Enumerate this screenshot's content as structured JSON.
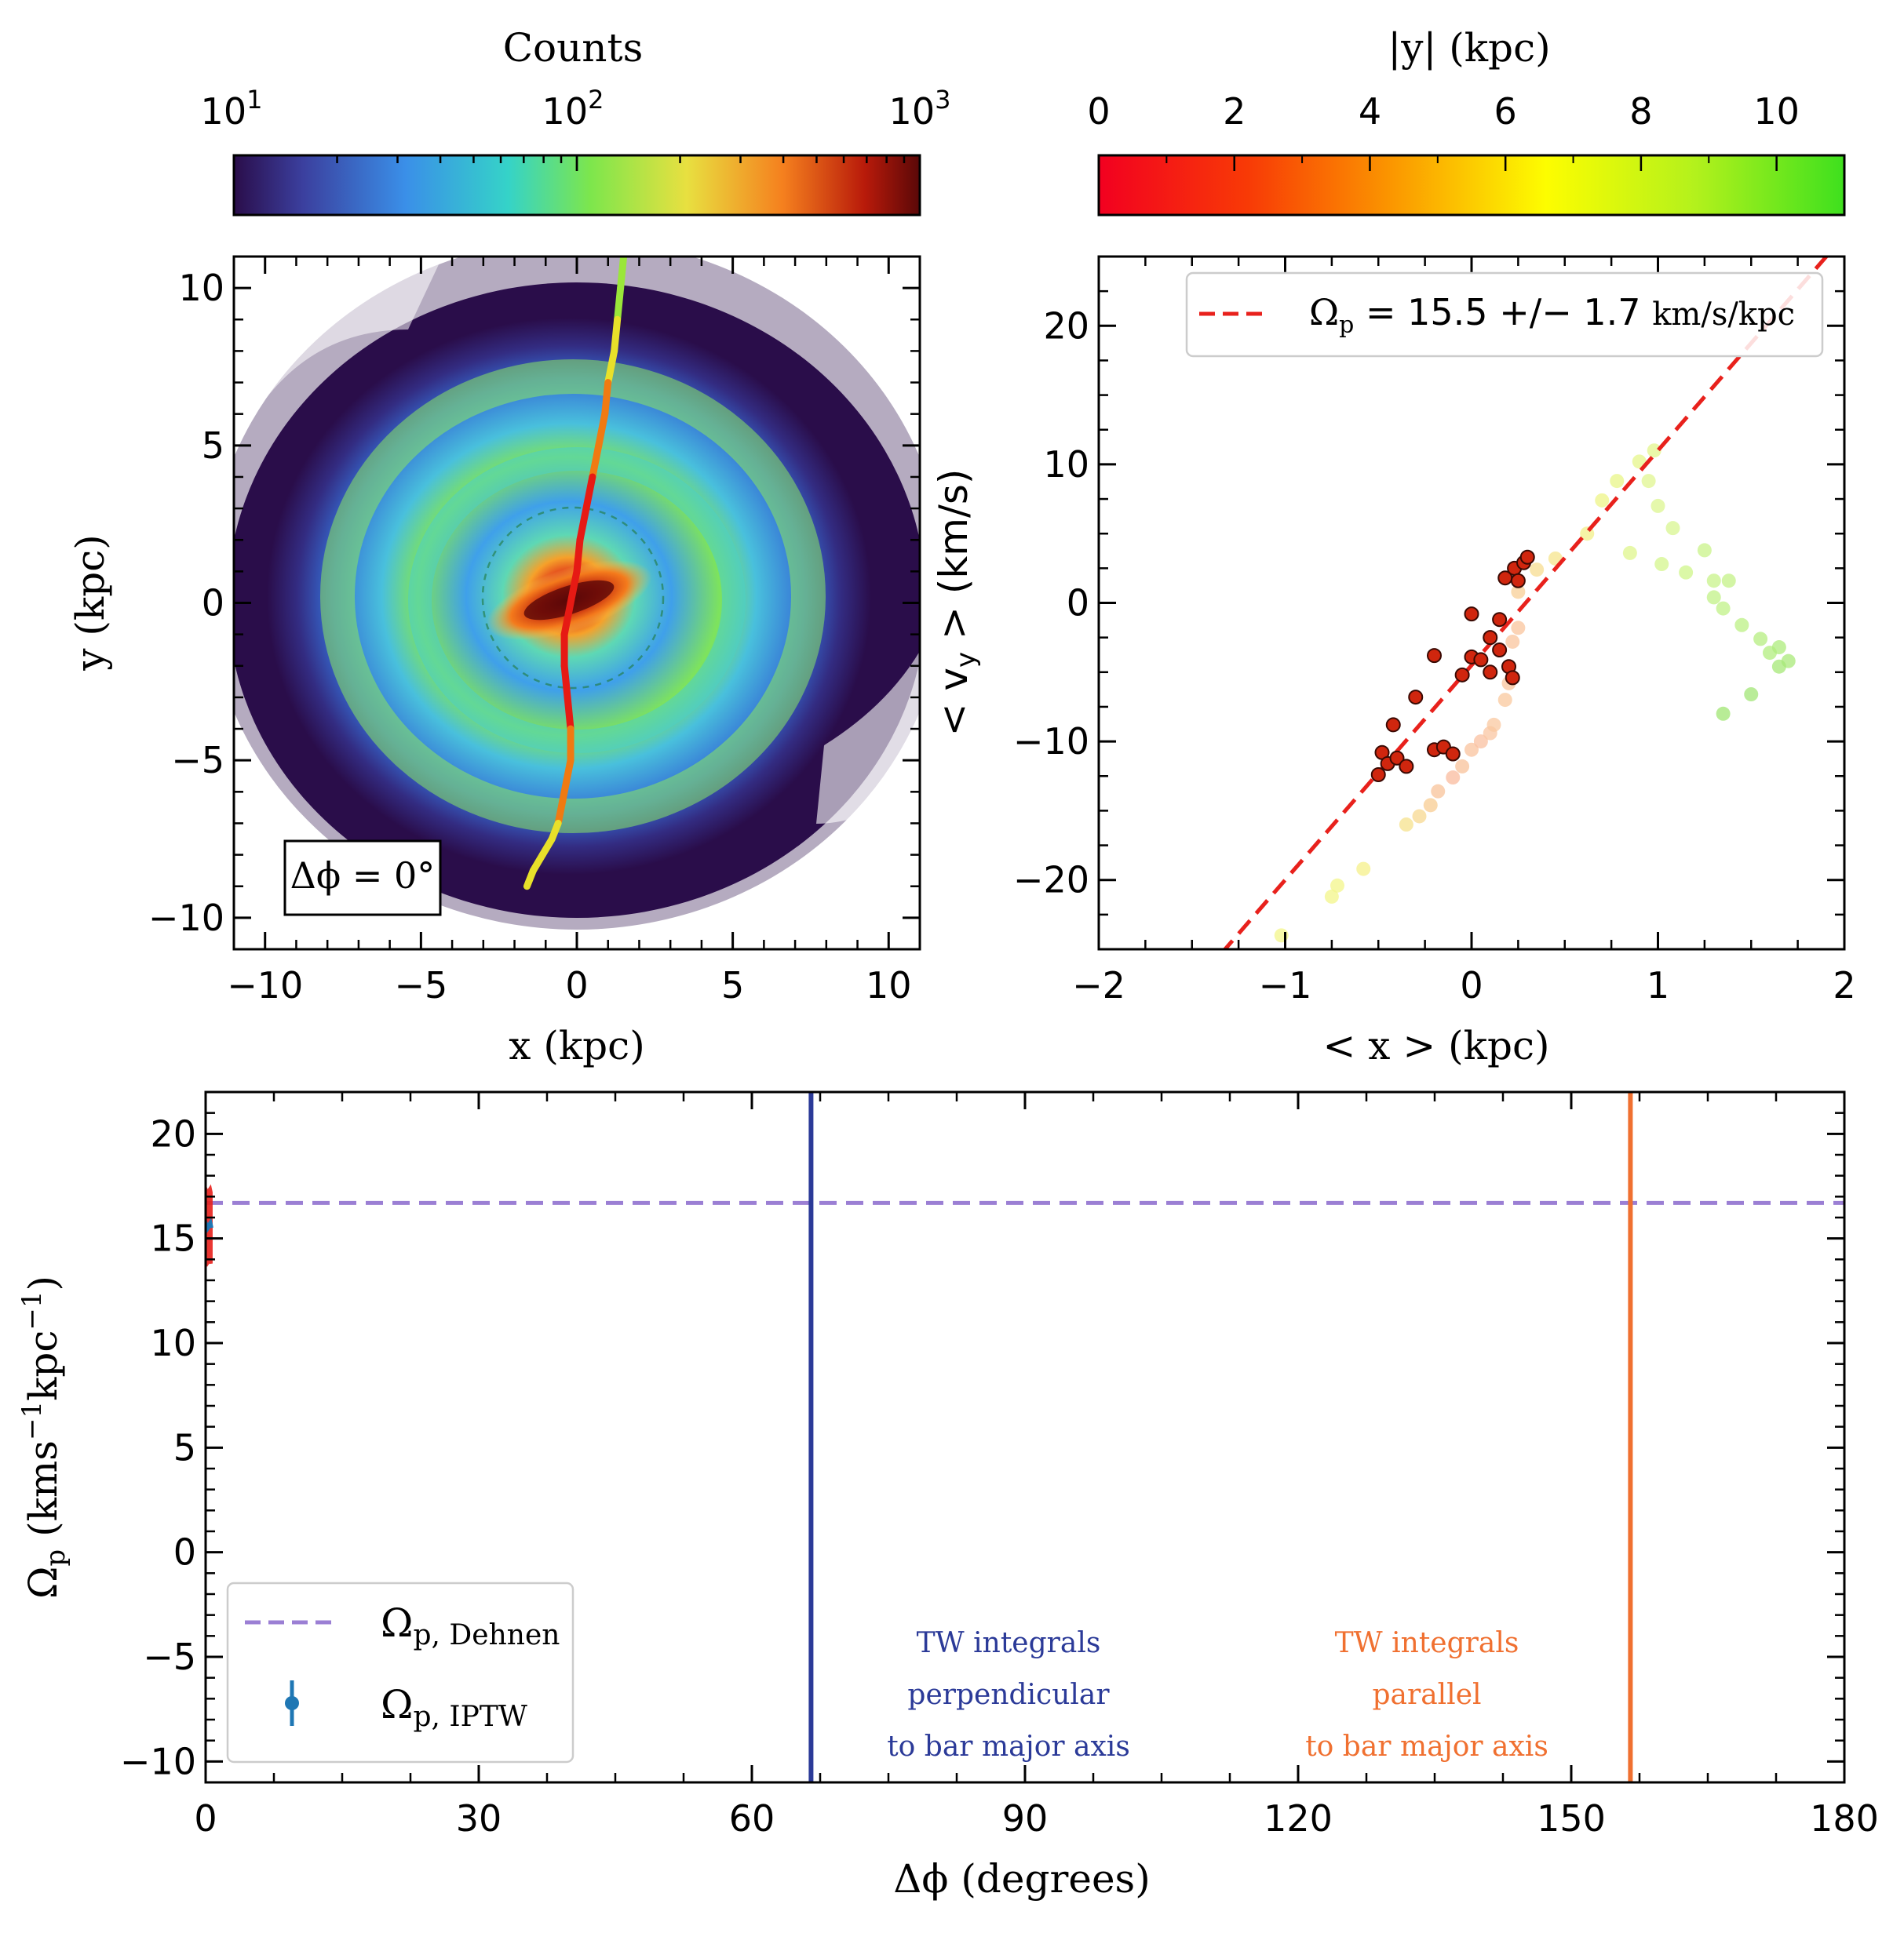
{
  "colors": {
    "axis": "#000000",
    "fit_line": "#e8211c",
    "dehnen_line": "#9b7fd4",
    "perp_line": "#2b3a98",
    "par_line": "#f07030",
    "iptw_marker": "#1f77b4",
    "dark_bg": "#2a0d4a"
  },
  "chart_data": [
    {
      "id": "density-map",
      "type": "heatmap",
      "colorbar": {
        "title": "Counts",
        "scale": "log",
        "range": [
          10,
          1000
        ],
        "tick_labels": [
          "10",
          "10",
          "10"
        ],
        "tick_exponents": [
          "1",
          "2",
          "3"
        ]
      },
      "xlabel": "x (kpc)",
      "ylabel": "y (kpc)",
      "xlim": [
        -11,
        11
      ],
      "ylim": [
        -11,
        11
      ],
      "xticks": [
        -10,
        -5,
        0,
        5,
        10
      ],
      "xtick_labels": [
        "−10",
        "−5",
        "0",
        "5",
        "10"
      ],
      "yticks": [
        -10,
        -5,
        0,
        5,
        10
      ],
      "ytick_labels": [
        "−10",
        "−5",
        "0",
        "5",
        "10"
      ],
      "annotation": "Δϕ = 0°",
      "ridge_line": {
        "x": [
          1.5,
          1.4,
          1.3,
          1.2,
          1.0,
          0.9,
          0.7,
          0.5,
          0.3,
          0.1,
          0.0,
          -0.1,
          -0.2,
          -0.3,
          -0.4,
          -0.4,
          -0.3,
          -0.2,
          -0.2,
          -0.4,
          -0.6,
          -0.8,
          -1.1,
          -1.4,
          -1.6
        ],
        "y": [
          11.0,
          10.0,
          9.0,
          8.0,
          7.0,
          6.0,
          5.0,
          4.0,
          3.0,
          2.0,
          1.0,
          0.5,
          0.0,
          -0.5,
          -1.0,
          -2.0,
          -3.0,
          -4.0,
          -5.0,
          -6.0,
          -7.0,
          -7.5,
          -8.0,
          -8.5,
          -9.0
        ]
      }
    },
    {
      "id": "tw-fit",
      "type": "scatter",
      "colorbar": {
        "title": "|y| (kpc)",
        "range": [
          0,
          11
        ],
        "ticks": [
          0,
          2,
          4,
          6,
          8,
          10
        ],
        "tick_labels": [
          "0",
          "2",
          "4",
          "6",
          "8",
          "10"
        ]
      },
      "xlabel": "< x > (kpc)",
      "ylabel": "< v",
      "ylabel_sub": "y",
      "ylabel_tail": " > (km/s)",
      "xlim": [
        -2,
        2
      ],
      "ylim": [
        -25,
        25
      ],
      "xticks": [
        -2,
        -1,
        0,
        1,
        2
      ],
      "xtick_labels": [
        "−2",
        "−1",
        "0",
        "1",
        "2"
      ],
      "yticks": [
        -20,
        -10,
        0,
        10,
        20
      ],
      "ytick_labels": [
        "−20",
        "−10",
        "0",
        "10",
        "20"
      ],
      "legend": {
        "label_sym": "Ω",
        "label_sub": "p",
        "label_text": " = 15.5 +/− 1.7 ",
        "label_unit": "km/s/kpc",
        "placement": "top-right"
      },
      "fit_line": {
        "slope": 15.5,
        "intercept": -4.5
      },
      "points_highlight": [
        {
          "x": -0.48,
          "y": -10.8
        },
        {
          "x": -0.45,
          "y": -11.6
        },
        {
          "x": -0.4,
          "y": -11.2
        },
        {
          "x": -0.35,
          "y": -11.8
        },
        {
          "x": -0.5,
          "y": -12.4
        },
        {
          "x": -0.42,
          "y": -8.8
        },
        {
          "x": -0.3,
          "y": -6.8
        },
        {
          "x": -0.2,
          "y": -10.6
        },
        {
          "x": -0.15,
          "y": -10.4
        },
        {
          "x": -0.1,
          "y": -10.9
        },
        {
          "x": -0.2,
          "y": -3.8
        },
        {
          "x": -0.05,
          "y": -5.2
        },
        {
          "x": 0.0,
          "y": -3.9
        },
        {
          "x": 0.05,
          "y": -4.1
        },
        {
          "x": 0.1,
          "y": -2.5
        },
        {
          "x": 0.15,
          "y": -3.4
        },
        {
          "x": 0.1,
          "y": -5.0
        },
        {
          "x": 0.2,
          "y": -4.6
        },
        {
          "x": 0.22,
          "y": -5.4
        },
        {
          "x": 0.15,
          "y": -1.2
        },
        {
          "x": 0.0,
          "y": -0.8
        },
        {
          "x": 0.18,
          "y": 1.8
        },
        {
          "x": 0.23,
          "y": 2.5
        },
        {
          "x": 0.28,
          "y": 2.9
        },
        {
          "x": 0.3,
          "y": 3.3
        },
        {
          "x": 0.25,
          "y": 1.6
        }
      ],
      "points_faded": [
        {
          "x": -1.02,
          "y": -24.0,
          "c": "#f3f58a"
        },
        {
          "x": -0.75,
          "y": -21.2,
          "c": "#f3f58a"
        },
        {
          "x": -0.72,
          "y": -20.4,
          "c": "#f3f58a"
        },
        {
          "x": -0.58,
          "y": -19.2,
          "c": "#f5f08a"
        },
        {
          "x": -0.35,
          "y": -16.0,
          "c": "#f6e28c"
        },
        {
          "x": -0.28,
          "y": -15.4,
          "c": "#f7d890"
        },
        {
          "x": -0.22,
          "y": -14.6,
          "c": "#f8cc92"
        },
        {
          "x": -0.18,
          "y": -13.6,
          "c": "#f8c39a"
        },
        {
          "x": -0.1,
          "y": -12.6,
          "c": "#f9bb9e"
        },
        {
          "x": -0.05,
          "y": -11.8,
          "c": "#f8c29a"
        },
        {
          "x": 0.0,
          "y": -10.6,
          "c": "#f9c39e"
        },
        {
          "x": 0.05,
          "y": -10.0,
          "c": "#f9c0a0"
        },
        {
          "x": 0.1,
          "y": -9.4,
          "c": "#f9c5a2"
        },
        {
          "x": 0.12,
          "y": -8.8,
          "c": "#f9c8a0"
        },
        {
          "x": 0.18,
          "y": -7.0,
          "c": "#f9c89e"
        },
        {
          "x": 0.2,
          "y": -5.8,
          "c": "#f9c49c"
        },
        {
          "x": 0.22,
          "y": -2.8,
          "c": "#f9c49c"
        },
        {
          "x": 0.25,
          "y": -1.8,
          "c": "#f9c49c"
        },
        {
          "x": 0.25,
          "y": 0.8,
          "c": "#f8cf96"
        },
        {
          "x": 0.35,
          "y": 2.4,
          "c": "#f7dc90"
        },
        {
          "x": 0.45,
          "y": 3.2,
          "c": "#f6e48c"
        },
        {
          "x": 0.62,
          "y": 5.0,
          "c": "#f2ef88"
        },
        {
          "x": 0.7,
          "y": 7.4,
          "c": "#eef487"
        },
        {
          "x": 0.78,
          "y": 8.8,
          "c": "#e8f587"
        },
        {
          "x": 0.9,
          "y": 10.2,
          "c": "#e6f58a"
        },
        {
          "x": 0.98,
          "y": 11.0,
          "c": "#e3f58c"
        },
        {
          "x": 0.95,
          "y": 8.8,
          "c": "#e0f590"
        },
        {
          "x": 1.0,
          "y": 7.0,
          "c": "#dcf590"
        },
        {
          "x": 1.08,
          "y": 5.4,
          "c": "#d8f590"
        },
        {
          "x": 0.85,
          "y": 3.6,
          "c": "#dff58c"
        },
        {
          "x": 1.02,
          "y": 2.8,
          "c": "#d4f58c"
        },
        {
          "x": 1.15,
          "y": 2.2,
          "c": "#cff58a"
        },
        {
          "x": 1.25,
          "y": 3.8,
          "c": "#caf38a"
        },
        {
          "x": 1.3,
          "y": 1.6,
          "c": "#c8f38a"
        },
        {
          "x": 1.38,
          "y": 1.6,
          "c": "#c4f287"
        },
        {
          "x": 1.3,
          "y": 0.4,
          "c": "#c2f287"
        },
        {
          "x": 1.35,
          "y": -0.4,
          "c": "#c0f287"
        },
        {
          "x": 1.45,
          "y": -1.6,
          "c": "#bcf084"
        },
        {
          "x": 1.55,
          "y": -2.6,
          "c": "#b6ee80"
        },
        {
          "x": 1.6,
          "y": -3.6,
          "c": "#b2ee7e"
        },
        {
          "x": 1.65,
          "y": -3.2,
          "c": "#aeec7c"
        },
        {
          "x": 1.7,
          "y": -4.2,
          "c": "#a9ea79"
        },
        {
          "x": 1.65,
          "y": -4.6,
          "c": "#a5e877"
        },
        {
          "x": 1.5,
          "y": -6.6,
          "c": "#a2e675"
        },
        {
          "x": 1.35,
          "y": -8.0,
          "c": "#a0e673"
        }
      ]
    },
    {
      "id": "pattern-speed",
      "type": "line",
      "xlabel": "Δϕ (degrees)",
      "ylabel_sym": "Ω",
      "ylabel_sub": "p",
      "ylabel_tail": " (kms",
      "ylabel_sup1": "−1",
      "ylabel_mid": "kpc",
      "ylabel_sup2": "−1",
      "ylabel_end": ")",
      "xlim": [
        0,
        180
      ],
      "ylim": [
        -11,
        22
      ],
      "xticks": [
        0,
        30,
        60,
        90,
        120,
        150,
        180
      ],
      "xtick_labels": [
        "0",
        "30",
        "60",
        "90",
        "120",
        "150",
        "180"
      ],
      "yticks": [
        -10,
        -5,
        0,
        5,
        10,
        15,
        20
      ],
      "ytick_labels": [
        "−10",
        "−5",
        "0",
        "5",
        "10",
        "15",
        "20"
      ],
      "dehnen_value": 16.7,
      "perpendicular_angle": 66.5,
      "parallel_angle": 156.5,
      "iptw": {
        "x": [
          0.0,
          0.1,
          0.2,
          0.5,
          0.6
        ],
        "y": [
          15.4,
          15.6,
          15.5,
          15.7,
          15.5
        ],
        "err": 1.7
      },
      "legend": [
        {
          "sym": "Ω",
          "sub": "p, Dehnen",
          "style": "dashed"
        },
        {
          "sym": "Ω",
          "sub": "p, IPTW",
          "style": "errorbar"
        }
      ],
      "annotations_perp": [
        "TW integrals",
        "perpendicular",
        "to bar major axis"
      ],
      "annotations_par": [
        "TW integrals",
        "parallel",
        "to bar major axis"
      ]
    }
  ]
}
